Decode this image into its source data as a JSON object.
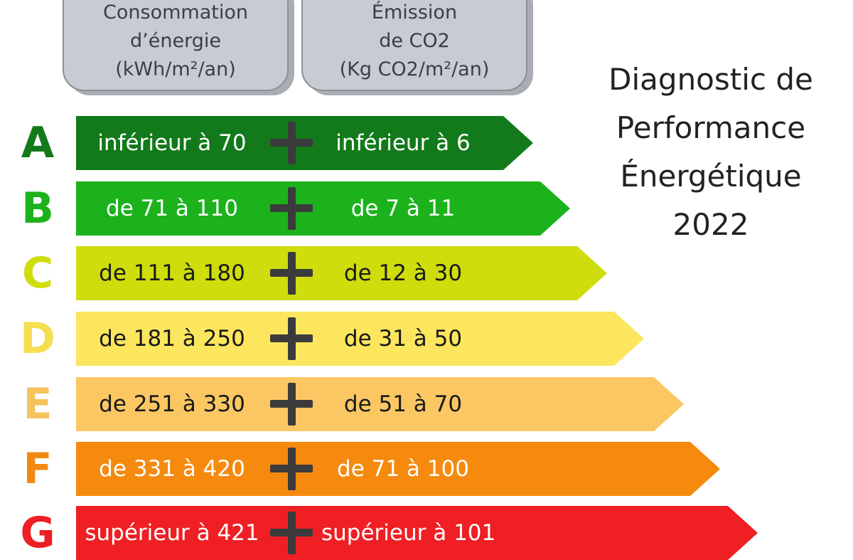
{
  "header": {
    "consumption_lines": [
      "Consommation",
      "d’énergie",
      "(kWh/m²/an)"
    ],
    "emission_lines": [
      "Émission",
      "de CO2",
      "(Kg CO2/m²/an)"
    ]
  },
  "title_lines": [
    "Diagnostic de",
    "Performance",
    "Énergétique",
    "2022"
  ],
  "classes": [
    {
      "letter": "A",
      "energy": "inférieur à 70",
      "co2": "inférieur à 6",
      "color": "#127a1a",
      "letter_color": "#127a1a",
      "text_color": "#ffffff"
    },
    {
      "letter": "B",
      "energy": "de 71 à 110",
      "co2": "de 7 à 11",
      "color": "#1bb21b",
      "letter_color": "#1bb21b",
      "text_color": "#ffffff"
    },
    {
      "letter": "C",
      "energy": "de 111 à 180",
      "co2": "de 12 à 30",
      "color": "#cedd0b",
      "letter_color": "#cedd0b",
      "text_color": "#1a1a1a"
    },
    {
      "letter": "D",
      "energy": "de 181 à 250",
      "co2": "de 31 à 50",
      "color": "#fbe65e",
      "letter_color": "#f5df4f",
      "text_color": "#1a1a1a"
    },
    {
      "letter": "E",
      "energy": "de 251 à 330",
      "co2": "de 51 à 70",
      "color": "#fbc762",
      "letter_color": "#f5c25c",
      "text_color": "#1a1a1a"
    },
    {
      "letter": "F",
      "energy": "de 331 à 420",
      "co2": "de 71 à 100",
      "color": "#f58a0f",
      "letter_color": "#f08a12",
      "text_color": "#ffffff"
    },
    {
      "letter": "G",
      "energy": "supérieur à 421",
      "co2": "supérieur à 101",
      "color": "#ef1f24",
      "letter_color": "#ee1f24",
      "text_color": "#ffffff"
    }
  ]
}
